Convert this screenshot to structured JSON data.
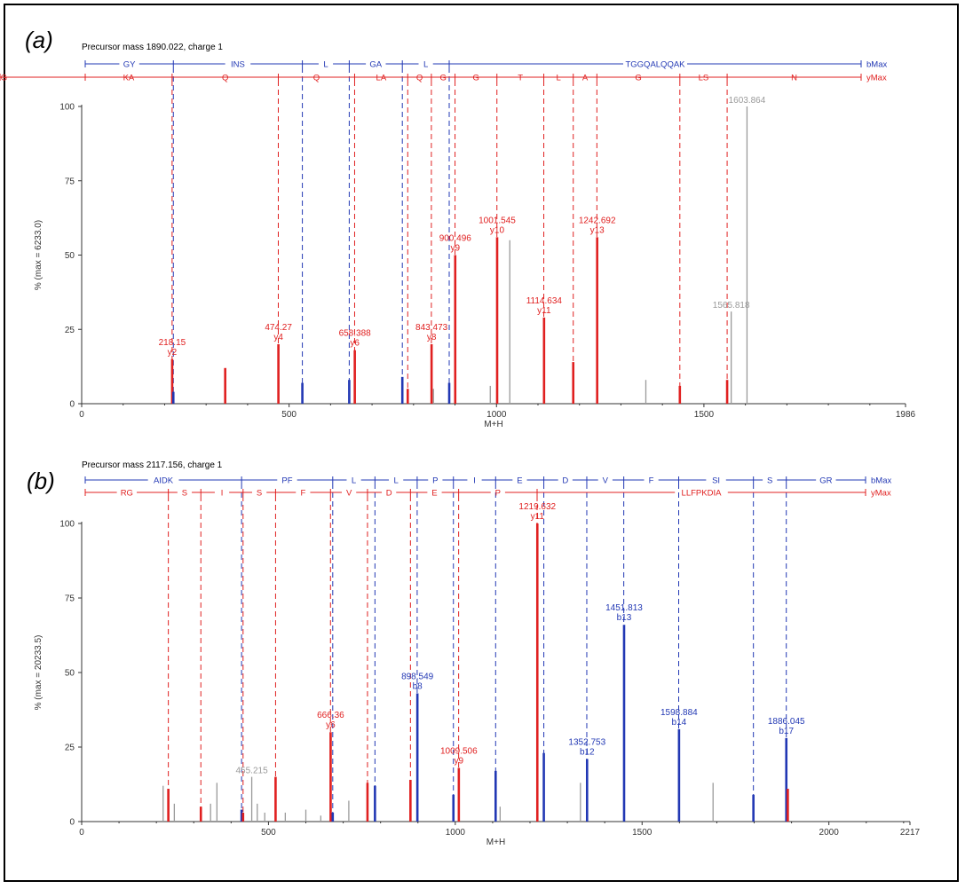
{
  "colors": {
    "b_ion": "#2238b4",
    "y_ion": "#e02020",
    "other": "#9a9a9a",
    "axis": "#333333"
  },
  "chart_data": [
    {
      "type": "bar",
      "panel_label": "(a)",
      "title": "Precursor mass 1890.022, charge 1",
      "xlabel": "M+H",
      "ylabel": "% (max = 6233.0)",
      "xlim": [
        0,
        1986
      ],
      "ylim": [
        0,
        100
      ],
      "x_ticks": [
        "0",
        "500",
        "1000",
        "1500",
        "1986"
      ],
      "x_tick_values": [
        0,
        500,
        1000,
        1500,
        1986
      ],
      "y_ticks": [
        "0",
        "25",
        "50",
        "75",
        "100"
      ],
      "y_tick_values": [
        0,
        25,
        50,
        75,
        100
      ],
      "b_ladder": {
        "end_label": "bMax",
        "segments": [
          "GY",
          "INS",
          "L",
          "GA",
          "L",
          "TGGQALQQAK"
        ],
        "positions": [
          0,
          221,
          532,
          645,
          773,
          886,
          1986
        ]
      },
      "y_ladder": {
        "end_label": "yMax",
        "segments": [
          "KA",
          "Q",
          "Q",
          "LA",
          "Q",
          "G",
          "G",
          "T",
          "L",
          "A",
          "G",
          "LS",
          "N",
          "IYG"
        ],
        "positions": [
          0,
          218,
          474,
          658,
          786,
          843,
          900,
          1001,
          1114,
          1185,
          1242,
          1442,
          1556,
          1986
        ]
      },
      "peaks": [
        {
          "mz": 218.15,
          "intensity": 15,
          "ion": "y",
          "label": "218.15",
          "ion_label": "y2"
        },
        {
          "mz": 221,
          "intensity": 4,
          "ion": "b"
        },
        {
          "mz": 346,
          "intensity": 12,
          "ion": "y"
        },
        {
          "mz": 474.27,
          "intensity": 20,
          "ion": "y",
          "label": "474.27",
          "ion_label": "y4"
        },
        {
          "mz": 532,
          "intensity": 7,
          "ion": "b"
        },
        {
          "mz": 645,
          "intensity": 8,
          "ion": "b"
        },
        {
          "mz": 658.388,
          "intensity": 18,
          "ion": "y",
          "label": "658.388",
          "ion_label": "y6"
        },
        {
          "mz": 773,
          "intensity": 9,
          "ion": "b"
        },
        {
          "mz": 786,
          "intensity": 5,
          "ion": "y"
        },
        {
          "mz": 843.473,
          "intensity": 20,
          "ion": "y",
          "label": "843.473",
          "ion_label": "y8"
        },
        {
          "mz": 848,
          "intensity": 5,
          "ion": "other"
        },
        {
          "mz": 886,
          "intensity": 7,
          "ion": "b"
        },
        {
          "mz": 900.496,
          "intensity": 50,
          "ion": "y",
          "label": "900.496",
          "ion_label": "y9"
        },
        {
          "mz": 985,
          "intensity": 6,
          "ion": "other"
        },
        {
          "mz": 1001.545,
          "intensity": 56,
          "ion": "y",
          "label": "1001.545",
          "ion_label": "y10"
        },
        {
          "mz": 1032,
          "intensity": 55,
          "ion": "other"
        },
        {
          "mz": 1114.634,
          "intensity": 29,
          "ion": "y",
          "label": "1114.634",
          "ion_label": "y11"
        },
        {
          "mz": 1185,
          "intensity": 14,
          "ion": "y"
        },
        {
          "mz": 1242.692,
          "intensity": 56,
          "ion": "y",
          "label": "1242.692",
          "ion_label": "y13"
        },
        {
          "mz": 1360,
          "intensity": 8,
          "ion": "other"
        },
        {
          "mz": 1442,
          "intensity": 6,
          "ion": "y"
        },
        {
          "mz": 1556,
          "intensity": 8,
          "ion": "y"
        },
        {
          "mz": 1565.818,
          "intensity": 31,
          "ion": "other",
          "label": "1565.818"
        },
        {
          "mz": 1603.864,
          "intensity": 100,
          "ion": "other",
          "label": "1603.864"
        }
      ]
    },
    {
      "type": "bar",
      "panel_label": "(b)",
      "title": "Precursor mass 2117.156, charge 1",
      "xlabel": "M+H",
      "ylabel": "% (max = 20233.5)",
      "xlim": [
        0,
        2217
      ],
      "ylim": [
        0,
        100
      ],
      "x_ticks": [
        "0",
        "500",
        "1000",
        "1500",
        "2000",
        "2217"
      ],
      "x_tick_values": [
        0,
        500,
        1000,
        1500,
        2000,
        2217
      ],
      "y_ticks": [
        "0",
        "25",
        "50",
        "75",
        "100"
      ],
      "y_tick_values": [
        0,
        25,
        50,
        75,
        100
      ],
      "b_ladder": {
        "end_label": "bMax",
        "segments": [
          "AIDK",
          "PF",
          "L",
          "L",
          "P",
          "I",
          "E",
          "D",
          "V",
          "F",
          "SI",
          "S",
          "GR"
        ],
        "positions": [
          0,
          428,
          672,
          785,
          898,
          995,
          1108,
          1237,
          1352,
          1451,
          1598,
          1798,
          1886,
          2217
        ]
      },
      "y_ladder": {
        "end_label": "yMax",
        "segments": [
          "RG",
          "S",
          "I",
          "S",
          "F",
          "V",
          "D",
          "E",
          "P",
          "LLFPKDIA"
        ],
        "positions": [
          0,
          232,
          319,
          432,
          519,
          666,
          765,
          880,
          1009,
          1219,
          2217
        ]
      },
      "peaks": [
        {
          "mz": 218,
          "intensity": 12,
          "ion": "other"
        },
        {
          "mz": 232,
          "intensity": 11,
          "ion": "y"
        },
        {
          "mz": 248,
          "intensity": 6,
          "ion": "other"
        },
        {
          "mz": 319,
          "intensity": 5,
          "ion": "y"
        },
        {
          "mz": 345,
          "intensity": 6,
          "ion": "other"
        },
        {
          "mz": 362,
          "intensity": 13,
          "ion": "other"
        },
        {
          "mz": 428,
          "intensity": 4,
          "ion": "b"
        },
        {
          "mz": 432,
          "intensity": 3,
          "ion": "y"
        },
        {
          "mz": 455.215,
          "intensity": 15,
          "ion": "other",
          "label": "455.215"
        },
        {
          "mz": 470,
          "intensity": 6,
          "ion": "other"
        },
        {
          "mz": 490,
          "intensity": 3,
          "ion": "other"
        },
        {
          "mz": 519,
          "intensity": 15,
          "ion": "y"
        },
        {
          "mz": 545,
          "intensity": 3,
          "ion": "other"
        },
        {
          "mz": 600,
          "intensity": 4,
          "ion": "other"
        },
        {
          "mz": 640,
          "intensity": 2,
          "ion": "other"
        },
        {
          "mz": 666.36,
          "intensity": 30,
          "ion": "y",
          "label": "666.36",
          "ion_label": "y6"
        },
        {
          "mz": 672,
          "intensity": 3,
          "ion": "b"
        },
        {
          "mz": 715,
          "intensity": 7,
          "ion": "other"
        },
        {
          "mz": 765,
          "intensity": 13,
          "ion": "y"
        },
        {
          "mz": 785,
          "intensity": 12,
          "ion": "b"
        },
        {
          "mz": 880,
          "intensity": 14,
          "ion": "y"
        },
        {
          "mz": 898.549,
          "intensity": 43,
          "ion": "b",
          "label": "898.549",
          "ion_label": "b8"
        },
        {
          "mz": 995,
          "intensity": 9,
          "ion": "b"
        },
        {
          "mz": 1009.506,
          "intensity": 18,
          "ion": "y",
          "label": "1009.506",
          "ion_label": "y9"
        },
        {
          "mz": 1108,
          "intensity": 17,
          "ion": "b"
        },
        {
          "mz": 1120,
          "intensity": 5,
          "ion": "other"
        },
        {
          "mz": 1219.632,
          "intensity": 100,
          "ion": "y",
          "label": "1219.632",
          "ion_label": "y11"
        },
        {
          "mz": 1237,
          "intensity": 23,
          "ion": "b"
        },
        {
          "mz": 1335,
          "intensity": 13,
          "ion": "other"
        },
        {
          "mz": 1352.753,
          "intensity": 21,
          "ion": "b",
          "label": "1352.753",
          "ion_label": "b12"
        },
        {
          "mz": 1451.813,
          "intensity": 66,
          "ion": "b",
          "label": "1451.813",
          "ion_label": "b13"
        },
        {
          "mz": 1598.884,
          "intensity": 31,
          "ion": "b",
          "label": "1598.884",
          "ion_label": "b14"
        },
        {
          "mz": 1690,
          "intensity": 13,
          "ion": "other"
        },
        {
          "mz": 1798,
          "intensity": 9,
          "ion": "b"
        },
        {
          "mz": 1886.045,
          "intensity": 28,
          "ion": "b",
          "label": "1886.045",
          "ion_label": "b17"
        },
        {
          "mz": 1890,
          "intensity": 11,
          "ion": "y"
        }
      ]
    }
  ]
}
